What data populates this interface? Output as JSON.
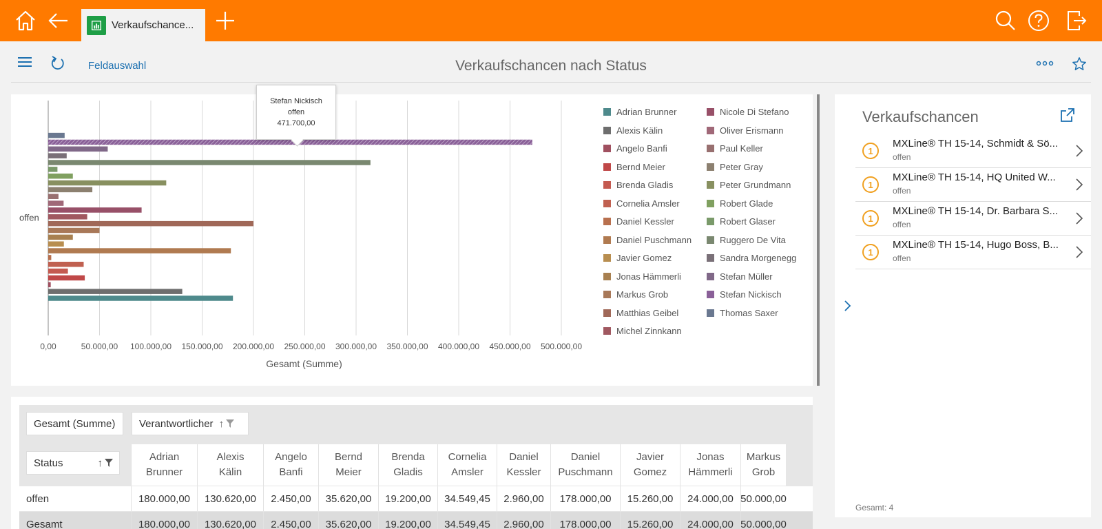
{
  "topbar": {
    "tab_label": "Verkaufschance...",
    "accent": "#ff7a00"
  },
  "toolbar": {
    "field_selection": "Feldauswahl",
    "title": "Verkaufschancen nach Status"
  },
  "chart_data": {
    "type": "bar",
    "orientation": "horizontal",
    "category": "offen",
    "xlabel": "Gesamt (Summe)",
    "xlim": [
      0,
      500000
    ],
    "xticks": [
      "0,00",
      "50.000,00",
      "100.000,00",
      "150.000,00",
      "200.000,00",
      "250.000,00",
      "300.000,00",
      "350.000,00",
      "400.000,00",
      "450.000,00",
      "500.000,00"
    ],
    "grid": true,
    "legend_position": "right",
    "series": [
      {
        "name": "Adrian Brunner",
        "value": 180000,
        "color": "#4e8a8c"
      },
      {
        "name": "Alexis Kälin",
        "value": 130620,
        "color": "#6e6e6e"
      },
      {
        "name": "Angelo Banfi",
        "value": 2450,
        "color": "#a05060"
      },
      {
        "name": "Bernd Meier",
        "value": 35620,
        "color": "#c04848"
      },
      {
        "name": "Brenda Gladis",
        "value": 19200,
        "color": "#c45a50"
      },
      {
        "name": "Cornelia Amsler",
        "value": 34549.45,
        "color": "#c06050"
      },
      {
        "name": "Daniel Kessler",
        "value": 2960,
        "color": "#b8704e"
      },
      {
        "name": "Daniel Puschmann",
        "value": 178000,
        "color": "#b07a50"
      },
      {
        "name": "Javier Gomez",
        "value": 15260,
        "color": "#b88e50"
      },
      {
        "name": "Jonas Hämmerli",
        "value": 24000,
        "color": "#a88050"
      },
      {
        "name": "Markus Grob",
        "value": 50000,
        "color": "#a87858"
      },
      {
        "name": "Matthias Geibel",
        "value": 200000,
        "color": "#a06858"
      },
      {
        "name": "Michel Zinnkann",
        "value": 38000,
        "color": "#a05860"
      },
      {
        "name": "Nicole Di Stefano",
        "value": 91000,
        "color": "#985068"
      },
      {
        "name": "Oliver Erismann",
        "value": 15000,
        "color": "#a06878"
      },
      {
        "name": "Paul Keller",
        "value": 10000,
        "color": "#987070"
      },
      {
        "name": "Peter Gray",
        "value": 43000,
        "color": "#8c8070"
      },
      {
        "name": "Peter Grundmann",
        "value": 115000,
        "color": "#889060"
      },
      {
        "name": "Robert Glade",
        "value": 24000,
        "color": "#80a060"
      },
      {
        "name": "Robert Glaser",
        "value": 9000,
        "color": "#7a9a6a"
      },
      {
        "name": "Ruggero De Vita",
        "value": 314000,
        "color": "#7a8870"
      },
      {
        "name": "Sandra Morgenegg",
        "value": 18000,
        "color": "#7a7078"
      },
      {
        "name": "Stefan Müller",
        "value": 58000,
        "color": "#806888"
      },
      {
        "name": "Stefan Nickisch",
        "value": 471700,
        "color": "#8a6098"
      },
      {
        "name": "Thomas Saxer",
        "value": 16000,
        "color": "#6a7890"
      }
    ],
    "tooltip": {
      "name": "Stefan Nickisch",
      "category": "offen",
      "value": "471.700,00"
    }
  },
  "pivot": {
    "measure_button": "Gesamt (Summe)",
    "column_field_button": "Verantwortlicher",
    "row_field_button": "Status",
    "columns": [
      {
        "line1": "Adrian",
        "line2": "Brunner"
      },
      {
        "line1": "Alexis",
        "line2": "Kälin"
      },
      {
        "line1": "Angelo",
        "line2": "Banfi"
      },
      {
        "line1": "Bernd",
        "line2": "Meier"
      },
      {
        "line1": "Brenda",
        "line2": "Gladis"
      },
      {
        "line1": "Cornelia",
        "line2": "Amsler"
      },
      {
        "line1": "Daniel",
        "line2": "Kessler"
      },
      {
        "line1": "Daniel",
        "line2": "Puschmann"
      },
      {
        "line1": "Javier",
        "line2": "Gomez"
      },
      {
        "line1": "Jonas",
        "line2": "Hämmerli"
      },
      {
        "line1": "Markus",
        "line2": "Grob"
      }
    ],
    "rows": [
      {
        "label": "offen",
        "values": [
          "180.000,00",
          "130.620,00",
          "2.450,00",
          "35.620,00",
          "19.200,00",
          "34.549,45",
          "2.960,00",
          "178.000,00",
          "15.260,00",
          "24.000,00",
          "50.000,00"
        ]
      },
      {
        "label": "Gesamt",
        "values": [
          "180.000,00",
          "130.620,00",
          "2.450,00",
          "35.620,00",
          "19.200,00",
          "34.549,45",
          "2.960,00",
          "178.000,00",
          "15.260,00",
          "24.000,00",
          "50.000,00"
        ]
      }
    ]
  },
  "right_panel": {
    "title": "Verkaufschancen",
    "items": [
      {
        "badge": "1",
        "name": "MXLine® TH 15-14, Schmidt & Sö...",
        "status": "offen"
      },
      {
        "badge": "1",
        "name": "MXLine® TH 15-14, HQ United W...",
        "status": "offen"
      },
      {
        "badge": "1",
        "name": "MXLine® TH 15-14, Dr. Barbara S...",
        "status": "offen"
      },
      {
        "badge": "1",
        "name": "MXLine® TH 15-14, Hugo Boss, B...",
        "status": "offen"
      }
    ],
    "total": "Gesamt: 4"
  }
}
